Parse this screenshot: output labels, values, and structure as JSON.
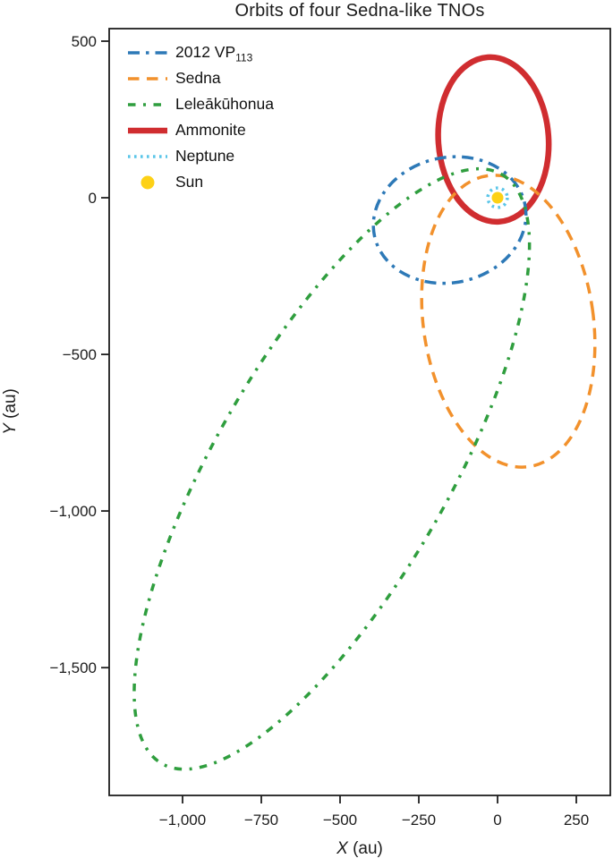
{
  "chart_data": {
    "type": "line",
    "subtype": "orbit_ellipses",
    "title": "Orbits of four Sedna-like TNOs",
    "xlabel": {
      "var": "X",
      "unit": " (au)"
    },
    "ylabel": {
      "var": "Y",
      "unit": " (au)"
    },
    "x_range": [
      -1233,
      358
    ],
    "y_range": [
      -1908,
      540
    ],
    "equal_aspect": true,
    "grid": false,
    "legend_position": "upper-left-inside",
    "x_ticks": [
      -1000,
      -750,
      -500,
      -250,
      0,
      250
    ],
    "x_tick_labels": [
      "−1,000",
      "−750",
      "−500",
      "−250",
      "0",
      "250"
    ],
    "y_ticks": [
      500,
      0,
      -500,
      -1000,
      -1500
    ],
    "y_tick_labels": [
      "500",
      "0",
      "−500",
      "−1,000",
      "−1,500"
    ],
    "frame_color": "#1f1f1f",
    "series": [
      {
        "name": "2012 VP113",
        "legend_label": "2012 VP",
        "legend_sub": "113",
        "kind": "orbit",
        "color": "#2d79b7",
        "linestyle": "dashdot",
        "linewidth": 3.5,
        "center_au": [
          -152,
          -71
        ],
        "semi_x_au": 244,
        "semi_y_au": 200,
        "rotation_ccw_deg": 12
      },
      {
        "name": "Sedna",
        "legend_label": "Sedna",
        "kind": "orbit",
        "color": "#f2912c",
        "linestyle": "dashed",
        "linewidth": 3.5,
        "center_au": [
          34,
          -394
        ],
        "semi_x_au": 270,
        "semi_y_au": 469,
        "rotation_ccw_deg": 8
      },
      {
        "name": "Leleākūhonua",
        "legend_label": "Leleākūhonua",
        "kind": "orbit",
        "color": "#2f9e3e",
        "linestyle": "dashdot-short",
        "linewidth": 3.5,
        "center_au": [
          -526,
          -866
        ],
        "semi_x_au": 1080,
        "semi_y_au": 371,
        "rotation_ccw_deg": 60
      },
      {
        "name": "Ammonite",
        "legend_label": "Ammonite",
        "kind": "orbit",
        "color": "#d02d30",
        "linestyle": "solid",
        "linewidth": 6.5,
        "center_au": [
          -13,
          186
        ],
        "semi_x_au": 175,
        "semi_y_au": 263,
        "rotation_ccw_deg": 4
      },
      {
        "name": "Neptune",
        "legend_label": "Neptune",
        "kind": "orbit",
        "color": "#5ac5e8",
        "linestyle": "dotted",
        "linewidth": 3.5,
        "center_au": [
          0,
          0
        ],
        "semi_x_au": 31,
        "semi_y_au": 31,
        "rotation_ccw_deg": 0
      },
      {
        "name": "Sun",
        "legend_label": "Sun",
        "kind": "marker",
        "color": "#fdd116",
        "center_au": [
          0,
          0
        ],
        "marker_radius_px": 6.5
      }
    ]
  }
}
